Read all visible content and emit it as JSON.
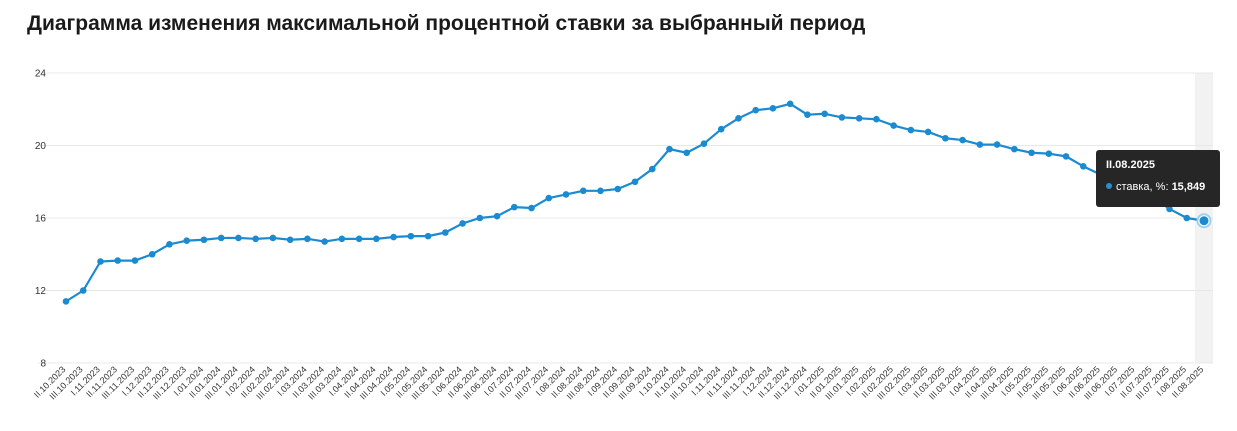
{
  "title": "Диаграмма изменения максимальной процентной ставки за выбранный период",
  "colors": {
    "line": "#1a8bd1",
    "grid": "#e8e8e8",
    "highlight": "#f2f2f2",
    "tooltip_bg": "#262626"
  },
  "tooltip": {
    "title": "II.08.2025",
    "label": "ставка, %:",
    "value": "15,849"
  },
  "chart_data": {
    "type": "line",
    "ylim": [
      8,
      24
    ],
    "yticks": [
      8,
      12,
      16,
      20,
      24
    ],
    "grid": true,
    "categories": [
      "II.10.2023",
      "III.10.2023",
      "I.11.2023",
      "II.11.2023",
      "III.11.2023",
      "I.12.2023",
      "II.12.2023",
      "III.12.2023",
      "I.01.2024",
      "II.01.2024",
      "III.01.2024",
      "I.02.2024",
      "II.02.2024",
      "III.02.2024",
      "I.03.2024",
      "II.03.2024",
      "III.03.2024",
      "I.04.2024",
      "II.04.2024",
      "III.04.2024",
      "I.05.2024",
      "II.05.2024",
      "III.05.2024",
      "I.06.2024",
      "II.06.2024",
      "III.06.2024",
      "I.07.2024",
      "II.07.2024",
      "III.07.2024",
      "I.08.2024",
      "II.08.2024",
      "III.08.2024",
      "I.09.2024",
      "II.09.2024",
      "III.09.2024",
      "I.10.2024",
      "II.10.2024",
      "III.10.2024",
      "I.11.2024",
      "II.11.2024",
      "III.11.2024",
      "I.12.2024",
      "II.12.2024",
      "III.12.2024",
      "I.01.2025",
      "II.01.2025",
      "III.01.2025",
      "I.02.2025",
      "II.02.2025",
      "III.02.2025",
      "I.03.2025",
      "II.03.2025",
      "III.03.2025",
      "I.04.2025",
      "II.04.2025",
      "III.04.2025",
      "I.05.2025",
      "II.05.2025",
      "III.05.2025",
      "I.06.2025",
      "II.06.2025",
      "III.06.2025",
      "I.07.2025",
      "II.07.2025",
      "III.07.2025",
      "I.08.2025",
      "II.08.2025"
    ],
    "series": [
      {
        "values": [
          11.4,
          12.0,
          13.6,
          13.65,
          13.65,
          14.0,
          14.55,
          14.75,
          14.8,
          14.9,
          14.9,
          14.85,
          14.9,
          14.8,
          14.85,
          14.7,
          14.85,
          14.85,
          14.85,
          14.95,
          15.0,
          15.0,
          15.2,
          15.7,
          16.0,
          16.1,
          16.6,
          16.55,
          17.1,
          17.3,
          17.5,
          17.5,
          17.6,
          18.0,
          18.7,
          19.8,
          19.6,
          20.1,
          20.9,
          21.5,
          21.95,
          22.05,
          22.3,
          21.7,
          21.75,
          21.55,
          21.5,
          21.45,
          21.1,
          20.85,
          20.75,
          20.4,
          20.3,
          20.05,
          20.05,
          19.8,
          19.6,
          19.55,
          19.4,
          18.85,
          18.4,
          17.9,
          17.5,
          17.2,
          16.5,
          16.0,
          15.849
        ]
      }
    ]
  }
}
